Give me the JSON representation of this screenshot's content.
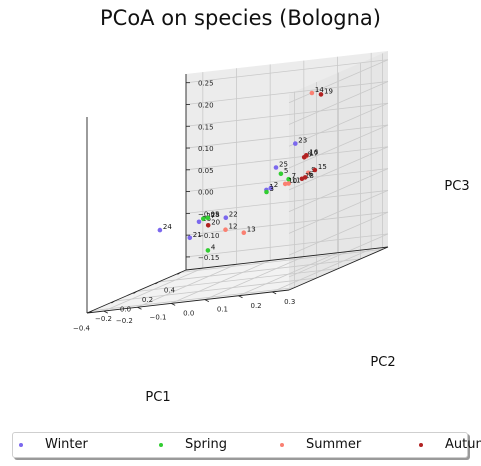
{
  "chart_data": {
    "type": "scatter",
    "projection": "3d",
    "title": "PCoA on species (Bologna)",
    "xlabel": "PC1",
    "ylabel": "PC2",
    "zlabel": "PC3",
    "xlim": [
      -0.45,
      0.45
    ],
    "ylim": [
      -0.25,
      0.35
    ],
    "zlim": [
      -0.18,
      0.27
    ],
    "xticks": [
      "−0.4",
      "−0.2",
      "0.0",
      "0.2",
      "0.4"
    ],
    "yticks": [
      "−0.2",
      "−0.1",
      "0.0",
      "0.1",
      "0.2",
      "0.3"
    ],
    "zticks": [
      "−0.15",
      "−0.10",
      "−0.05",
      "0.00",
      "0.05",
      "0.10",
      "0.15",
      "0.20",
      "0.25"
    ],
    "grid": true,
    "legend_position": "bottom",
    "series": [
      {
        "name": "Winter",
        "color": "#7b68ee",
        "points": [
          {
            "label": "1",
            "x": -0.38,
            "y": 0.26,
            "z": 0.05
          },
          {
            "label": "2",
            "x": -0.34,
            "y": 0.26,
            "z": 0.05
          },
          {
            "label": "23",
            "x": -0.27,
            "y": 0.31,
            "z": 0.14
          },
          {
            "label": "25",
            "x": 0.35,
            "y": 0.05,
            "z": 0.04
          },
          {
            "label": "22",
            "x": 0.2,
            "y": -0.05,
            "z": -0.05
          },
          {
            "label": "26",
            "x": 0.17,
            "y": -0.12,
            "z": -0.05
          },
          {
            "label": "24",
            "x": 0.06,
            "y": -0.2,
            "z": -0.05
          },
          {
            "label": "21",
            "x": 0.24,
            "y": -0.17,
            "z": -0.09
          }
        ]
      },
      {
        "name": "Spring",
        "color": "#32cd32",
        "points": [
          {
            "label": "3",
            "x": -0.44,
            "y": 0.28,
            "z": 0.05
          },
          {
            "label": "5",
            "x": -0.34,
            "y": 0.29,
            "z": 0.08
          },
          {
            "label": "7",
            "x": -0.27,
            "y": 0.29,
            "z": 0.06
          },
          {
            "label": "4",
            "x": -0.3,
            "y": 0.06,
            "z": -0.08
          },
          {
            "label": "27",
            "x": 0.24,
            "y": -0.13,
            "z": -0.05
          },
          {
            "label": "28",
            "x": 0.25,
            "y": -0.12,
            "z": -0.05
          }
        ]
      },
      {
        "name": "Summer",
        "color": "#fa8072",
        "points": [
          {
            "label": "10",
            "x": -0.27,
            "y": 0.28,
            "z": 0.05
          },
          {
            "label": "11",
            "x": -0.27,
            "y": 0.29,
            "z": 0.05
          },
          {
            "label": "9",
            "x": -0.03,
            "y": 0.27,
            "z": 0.05
          },
          {
            "label": "14",
            "x": 0.37,
            "y": 0.15,
            "z": 0.2
          },
          {
            "label": "12",
            "x": -0.14,
            "y": 0.06,
            "z": -0.05
          },
          {
            "label": "13",
            "x": 0.21,
            "y": 0.0,
            "z": -0.09
          },
          {
            "label": "17",
            "x": 0.32,
            "y": 0.15,
            "z": 0.06
          }
        ]
      },
      {
        "name": "Autumn",
        "color": "#b22222",
        "points": [
          {
            "label": "18",
            "x": -0.18,
            "y": 0.3,
            "z": 0.05
          },
          {
            "label": "6",
            "x": -0.15,
            "y": 0.3,
            "z": 0.05
          },
          {
            "label": "15",
            "x": 0.03,
            "y": 0.27,
            "z": 0.05
          },
          {
            "label": "19",
            "x": 0.3,
            "y": 0.2,
            "z": 0.2
          },
          {
            "label": "8",
            "x": 0.3,
            "y": 0.15,
            "z": 0.06
          },
          {
            "label": "16",
            "x": 0.35,
            "y": 0.14,
            "z": 0.06
          },
          {
            "label": "20",
            "x": 0.04,
            "y": -0.05,
            "z": -0.05
          }
        ]
      }
    ]
  }
}
